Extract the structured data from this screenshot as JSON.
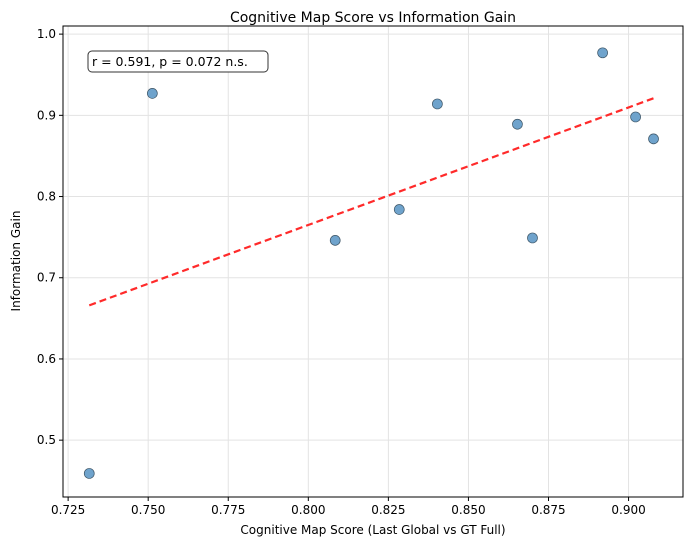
{
  "chart_data": {
    "type": "scatter",
    "title": "Cognitive Map Score vs Information Gain",
    "xlabel": "Cognitive Map Score (Last Global vs GT Full)",
    "ylabel": "Information Gain",
    "xlim": [
      0.7234,
      0.917
    ],
    "ylim": [
      0.43,
      1.01
    ],
    "xticks": [
      0.725,
      0.75,
      0.775,
      0.8,
      0.825,
      0.85,
      0.875,
      0.9
    ],
    "xtick_labels": [
      "0.725",
      "0.750",
      "0.775",
      "0.800",
      "0.825",
      "0.850",
      "0.875",
      "0.900"
    ],
    "yticks": [
      0.5,
      0.6,
      0.7,
      0.8,
      0.9,
      1.0
    ],
    "ytick_labels": [
      "0.5",
      "0.6",
      "0.7",
      "0.8",
      "0.9",
      "1.0"
    ],
    "grid": true,
    "points": [
      {
        "x": 0.7316,
        "y": 0.459
      },
      {
        "x": 0.7513,
        "y": 0.927
      },
      {
        "x": 0.8084,
        "y": 0.746
      },
      {
        "x": 0.8284,
        "y": 0.784
      },
      {
        "x": 0.8403,
        "y": 0.914
      },
      {
        "x": 0.8653,
        "y": 0.889
      },
      {
        "x": 0.87,
        "y": 0.749
      },
      {
        "x": 0.8919,
        "y": 0.977
      },
      {
        "x": 0.9022,
        "y": 0.898
      },
      {
        "x": 0.9078,
        "y": 0.871
      }
    ],
    "fit_line": {
      "x": [
        0.7316,
        0.9078
      ],
      "y": [
        0.666,
        0.921
      ],
      "style": "dashed",
      "color": "#ff2a2a"
    },
    "point_color": "#6fa3cc",
    "annotation": "r = 0.591, p = 0.072 n.s."
  }
}
